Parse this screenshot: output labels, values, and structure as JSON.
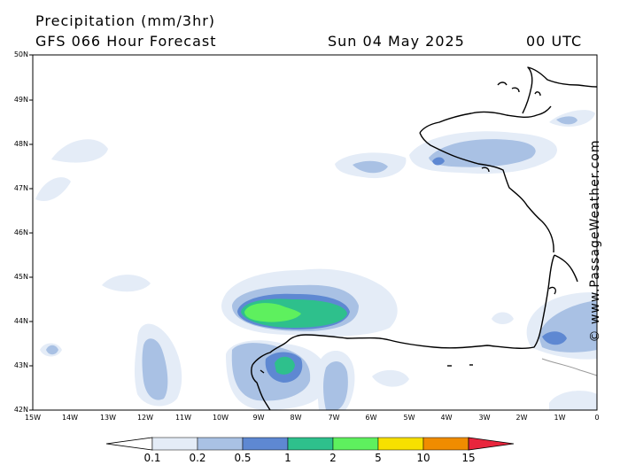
{
  "header": {
    "title": "Precipitation (mm/3hr)",
    "model": "GFS 066 Hour Forecast",
    "date": "Sun 04 May 2025",
    "time": "00 UTC"
  },
  "credit": "© www.PassageWeather.com",
  "axes": {
    "lat_labels": [
      "50N",
      "49N",
      "48N",
      "47N",
      "46N",
      "45N",
      "44N",
      "43N",
      "42N"
    ],
    "lon_labels": [
      "15W",
      "14W",
      "13W",
      "12W",
      "11W",
      "10W",
      "9W",
      "8W",
      "7W",
      "6W",
      "5W",
      "4W",
      "3W",
      "2W",
      "1W",
      "0"
    ]
  },
  "legend": {
    "labels": [
      "0.1",
      "0.2",
      "0.5",
      "1",
      "2",
      "5",
      "10",
      "15"
    ],
    "colors": [
      "#ffffff",
      "#e4ecf7",
      "#a9c1e4",
      "#5e88d2",
      "#2ec08c",
      "#5ef05e",
      "#f7e000",
      "#f08c00",
      "#e8253c"
    ]
  },
  "map": {
    "land_color": "#ffffff",
    "coast_color": "#000000",
    "frame_color": "#000000"
  }
}
